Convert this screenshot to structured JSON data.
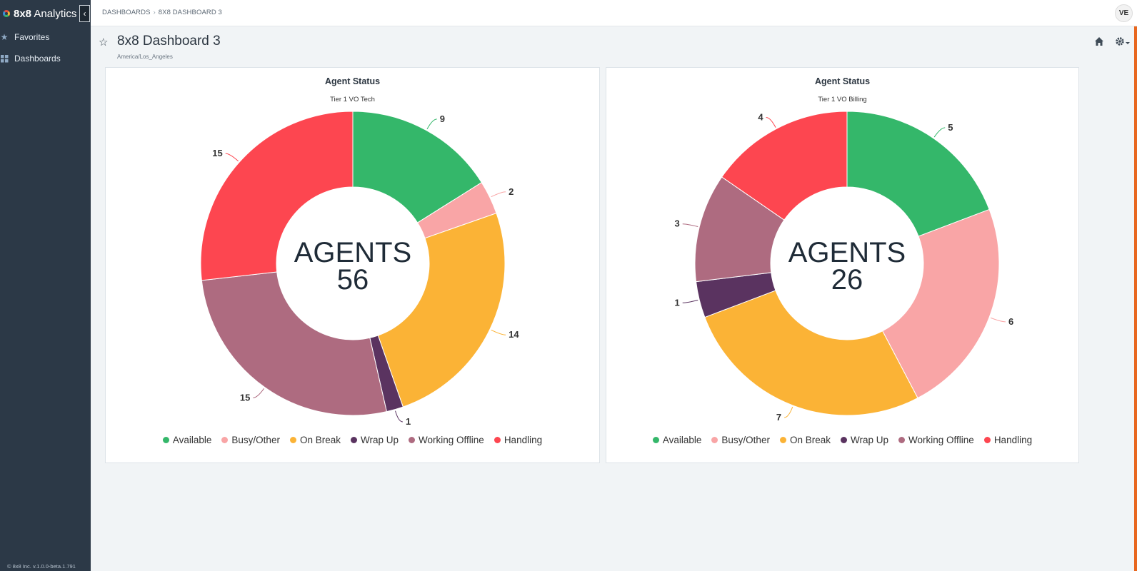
{
  "app": {
    "brand_bold": "8x8",
    "brand_rest": " Analytics",
    "version": "© 8x8 Inc. v.1.0.0-beta.1.791"
  },
  "sidebar": {
    "items": [
      {
        "label": "Favorites",
        "icon": "star-icon"
      },
      {
        "label": "Dashboards",
        "icon": "dashboard-grid-icon"
      }
    ]
  },
  "topbar": {
    "breadcrumb": [
      "DASHBOARDS",
      "8X8 DASHBOARD 3"
    ],
    "avatar_initials": "VE"
  },
  "page": {
    "title": "8x8 Dashboard 3",
    "timezone": "America/Los_Angeles"
  },
  "colors": {
    "available": "#34b76a",
    "busy_other": "#f9a5a6",
    "on_break": "#fbb336",
    "wrap_up": "#5a3360",
    "working_offline": "#ae6b80",
    "handling": "#fd4650",
    "accent": "#e8671f"
  },
  "chart_data": [
    {
      "type": "pie",
      "title": "Agent Status",
      "subtitle": "Tier 1 VO Tech",
      "center_label": "AGENTS",
      "center_value": "56",
      "categories": [
        "Available",
        "Busy/Other",
        "On Break",
        "Wrap Up",
        "Working Offline",
        "Handling"
      ],
      "values": [
        9,
        2,
        14,
        1,
        15,
        15
      ],
      "colors": [
        "#34b76a",
        "#f9a5a6",
        "#fbb336",
        "#5a3360",
        "#ae6b80",
        "#fd4650"
      ],
      "legend": "bottom"
    },
    {
      "type": "pie",
      "title": "Agent Status",
      "subtitle": "Tier 1 VO Billing",
      "center_label": "AGENTS",
      "center_value": "26",
      "categories": [
        "Available",
        "Busy/Other",
        "On Break",
        "Wrap Up",
        "Working Offline",
        "Handling"
      ],
      "values": [
        5,
        6,
        7,
        1,
        3,
        4
      ],
      "colors": [
        "#34b76a",
        "#f9a5a6",
        "#fbb336",
        "#5a3360",
        "#ae6b80",
        "#fd4650"
      ],
      "legend": "bottom"
    }
  ]
}
